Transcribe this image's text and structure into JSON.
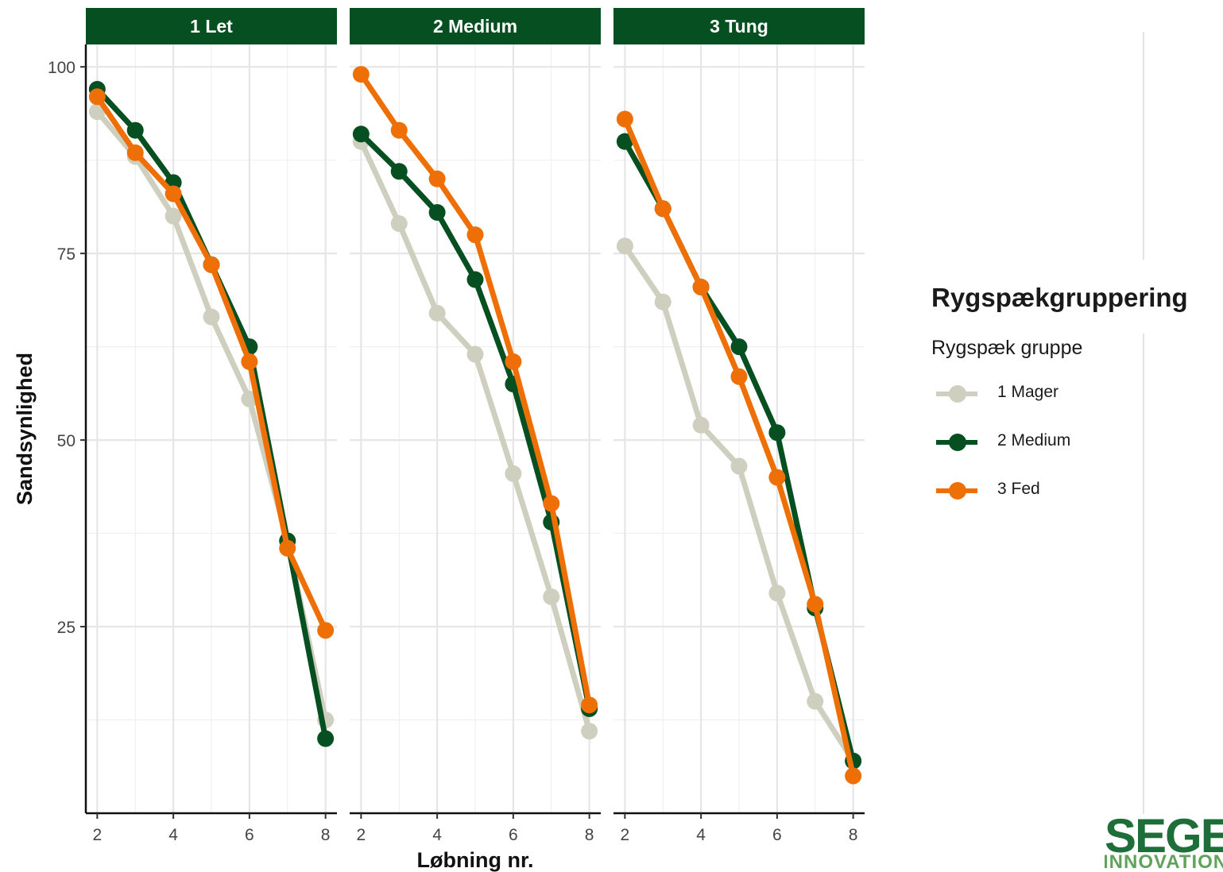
{
  "chart_data": {
    "type": "line",
    "panels": [
      "1 Let",
      "2 Medium",
      "3 Tung"
    ],
    "xlabel": "Løbning nr.",
    "ylabel": "Sandsynlighed",
    "x": [
      2,
      3,
      4,
      5,
      6,
      7,
      8
    ],
    "x_ticks": [
      2,
      4,
      6,
      8
    ],
    "y_ticks": [
      25,
      50,
      75,
      100
    ],
    "xlim": [
      1.7,
      8.3
    ],
    "ylim": [
      0,
      103
    ],
    "grid": true,
    "legend_placement": "right",
    "legend_title": "Rygspækgruppering",
    "legend_subtitle": "Rygspæk gruppe",
    "series": [
      {
        "name": "1 Mager",
        "color": "#cfcfbf",
        "values": {
          "1 Let": [
            94,
            88,
            80,
            66.5,
            55.5,
            36.5,
            12.5
          ],
          "2 Medium": [
            90,
            79,
            67,
            61.5,
            45.5,
            29,
            11
          ],
          "3 Tung": [
            76,
            68.5,
            52,
            46.5,
            29.5,
            15,
            7
          ]
        }
      },
      {
        "name": "2 Medium",
        "color": "#064f20",
        "values": {
          "1 Let": [
            97,
            91.5,
            84.5,
            73.5,
            62.5,
            36.5,
            10
          ],
          "2 Medium": [
            91,
            86,
            80.5,
            71.5,
            57.5,
            39,
            14
          ],
          "3 Tung": [
            90,
            81,
            70.5,
            62.5,
            51,
            27.5,
            7
          ]
        }
      },
      {
        "name": "3 Fed",
        "color": "#ee6f06",
        "values": {
          "1 Let": [
            96,
            88.5,
            83,
            73.5,
            60.5,
            35.5,
            24.5
          ],
          "2 Medium": [
            99,
            91.5,
            85,
            77.5,
            60.5,
            41.5,
            14.5
          ],
          "3 Tung": [
            93,
            81,
            70.5,
            58.5,
            45,
            28,
            5
          ]
        }
      }
    ],
    "strip_color": "#064f20",
    "strip_text_color": "#ffffff"
  },
  "logo": {
    "text_main": "SEGES",
    "text_sub": "INNOVATION"
  }
}
